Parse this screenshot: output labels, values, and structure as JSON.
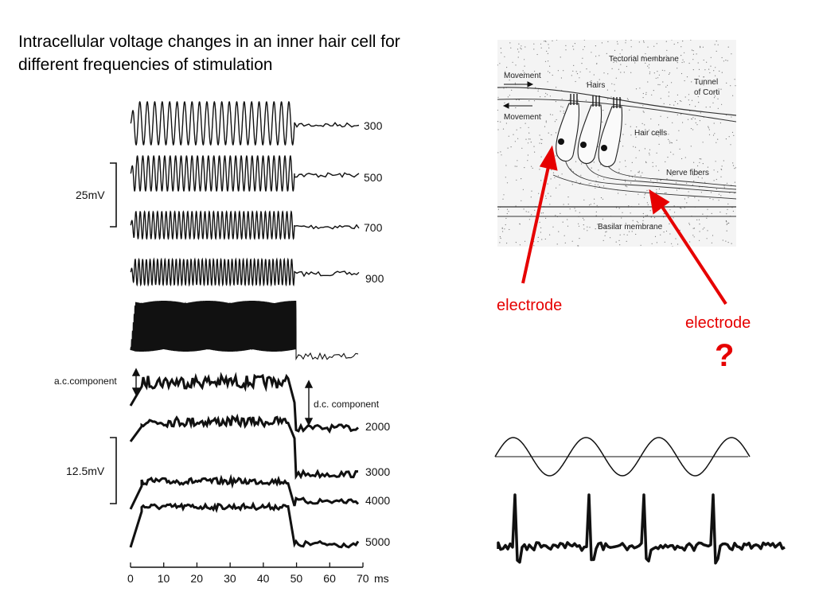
{
  "title": "Intracellular voltage changes in an inner hair cell for different frequencies of stimulation",
  "left_figure": {
    "traces": [
      "300",
      "500",
      "700",
      "900",
      "2000",
      "3000",
      "4000",
      "5000"
    ],
    "scale_top": "25mV",
    "scale_bottom": "12.5mV",
    "ac_label": "a.c.component",
    "dc_label": "d.c. component",
    "time_axis": {
      "ticks": [
        "0",
        "10",
        "20",
        "30",
        "40",
        "50",
        "60",
        "70"
      ],
      "unit": "ms"
    }
  },
  "anatomy": {
    "labels": {
      "tectorial": "Tectorial membrane",
      "movement_top": "Movement",
      "movement_bottom": "Movement",
      "hairs": "Hairs",
      "tunnel": "Tunnel",
      "tunnel2": "of Corti",
      "hair_cells": "Hair cells",
      "nerve_fibers": "Nerve fibers",
      "basilar": "Basilar membrane"
    }
  },
  "electrode_left": "electrode",
  "electrode_right": "electrode",
  "question_mark": "?",
  "colors": {
    "accent": "#e60000",
    "trace": "#111111"
  }
}
